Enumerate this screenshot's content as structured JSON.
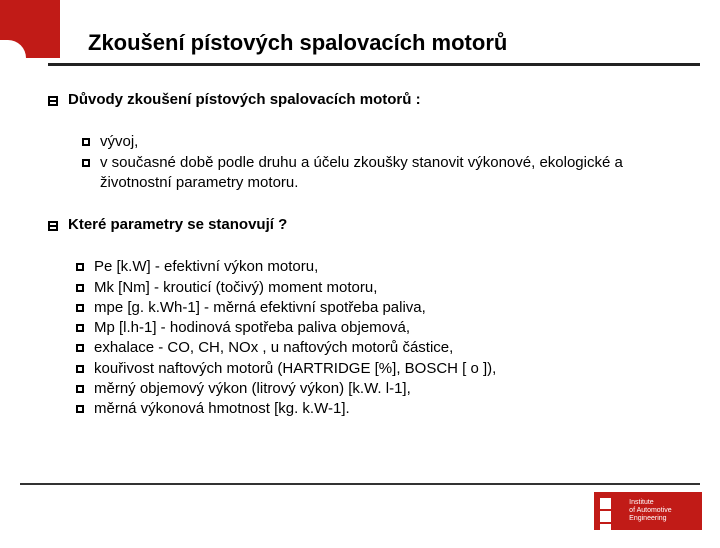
{
  "title": "Zkoušení pístových spalovacích motorů",
  "section1": {
    "heading": "Důvody zkoušení pístových spalovacích motorů :",
    "items": [
      "vývoj,",
      "v současné době podle druhu a účelu zkoušky  stanovit výkonové,  ekologické a životnostní parametry motoru."
    ]
  },
  "section2": {
    "heading": "Které parametry se stanovují ?",
    "items": [
      "Pe    [k.W] - efektivní výkon motoru,",
      "Mk    [Nm]            - krouticí (točivý) moment motoru,",
      "mpe  [g. k.Wh-1]     - měrná efektivní spotřeba paliva,",
      "Mp   [l.h-1] - hodinová spotřeba paliva objemová,",
      "exhalace  - CO, CH, NOx , u naftových motorů částice,",
      "kouřivost naftových motorů (HARTRIDGE [%], BOSCH  [ o ]),",
      "měrný objemový výkon (litrový výkon) [k.W. l-1],",
      "měrná výkonová hmotnost [kg. k.W-1]."
    ]
  },
  "footer": {
    "line1": "Institute",
    "line2": "of Automotive Engineering"
  }
}
